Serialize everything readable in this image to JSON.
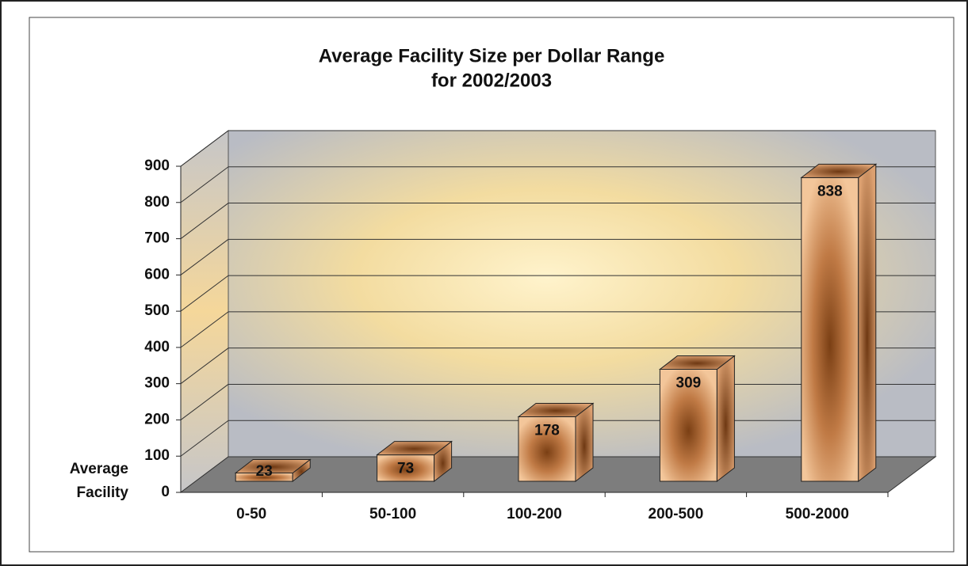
{
  "chart_data": {
    "type": "bar3d",
    "title": "Average Facility Size per Dollar Range",
    "subtitle": "for 2002/2003",
    "y_label": "Average Facility",
    "categories": [
      "0-50",
      "50-100",
      "100-200",
      "200-500",
      "500-2000"
    ],
    "values": [
      23,
      73,
      178,
      309,
      838
    ],
    "color": "#c8864a",
    "ylim": [
      0,
      900
    ],
    "yticks": [
      0,
      100,
      200,
      300,
      400,
      500,
      600,
      700,
      800,
      900
    ],
    "grid": true
  }
}
